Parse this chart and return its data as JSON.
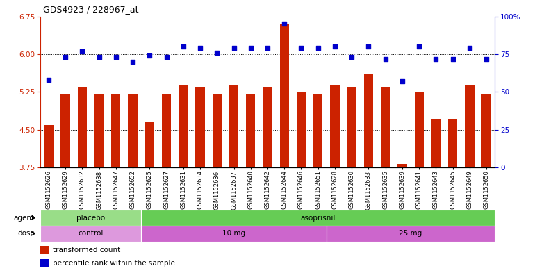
{
  "title": "GDS4923 / 228967_at",
  "samples": [
    "GSM1152626",
    "GSM1152629",
    "GSM1152632",
    "GSM1152638",
    "GSM1152647",
    "GSM1152652",
    "GSM1152625",
    "GSM1152627",
    "GSM1152631",
    "GSM1152634",
    "GSM1152636",
    "GSM1152637",
    "GSM1152640",
    "GSM1152642",
    "GSM1152644",
    "GSM1152646",
    "GSM1152651",
    "GSM1152628",
    "GSM1152630",
    "GSM1152633",
    "GSM1152635",
    "GSM1152639",
    "GSM1152641",
    "GSM1152643",
    "GSM1152645",
    "GSM1152649",
    "GSM1152650"
  ],
  "bar_values": [
    4.6,
    5.22,
    5.35,
    5.2,
    5.22,
    5.22,
    4.65,
    5.22,
    5.4,
    5.35,
    5.22,
    5.4,
    5.22,
    5.35,
    6.6,
    5.25,
    5.22,
    5.4,
    5.35,
    5.6,
    5.35,
    3.82,
    5.25,
    4.7,
    4.7,
    5.4,
    5.22
  ],
  "dot_values": [
    58,
    73,
    77,
    73,
    73,
    70,
    74,
    73,
    80,
    79,
    76,
    79,
    79,
    79,
    95,
    79,
    79,
    80,
    73,
    80,
    72,
    57,
    80,
    72,
    72,
    79,
    72
  ],
  "ylim_left": [
    3.75,
    6.75
  ],
  "ylim_right": [
    0,
    100
  ],
  "yticks_left": [
    3.75,
    4.5,
    5.25,
    6.0,
    6.75
  ],
  "yticks_right": [
    0,
    25,
    50,
    75,
    100
  ],
  "bar_color": "#cc2200",
  "dot_color": "#0000cc",
  "agent_groups": [
    {
      "label": "placebo",
      "start": 0,
      "end": 6,
      "color": "#99dd88"
    },
    {
      "label": "asoprisnil",
      "start": 6,
      "end": 27,
      "color": "#66cc55"
    }
  ],
  "dose_groups": [
    {
      "label": "control",
      "start": 0,
      "end": 6,
      "color": "#dd99dd"
    },
    {
      "label": "10 mg",
      "start": 6,
      "end": 17,
      "color": "#cc66cc"
    },
    {
      "label": "25 mg",
      "start": 17,
      "end": 27,
      "color": "#cc66cc"
    }
  ],
  "legend_items": [
    {
      "label": "transformed count",
      "color": "#cc2200"
    },
    {
      "label": "percentile rank within the sample",
      "color": "#0000cc"
    }
  ],
  "hlines": [
    6.0,
    5.25,
    4.5
  ],
  "bg_color": "#ffffff",
  "plot_bg": "#ffffff",
  "axis_color_left": "#cc2200",
  "axis_color_right": "#0000cc"
}
